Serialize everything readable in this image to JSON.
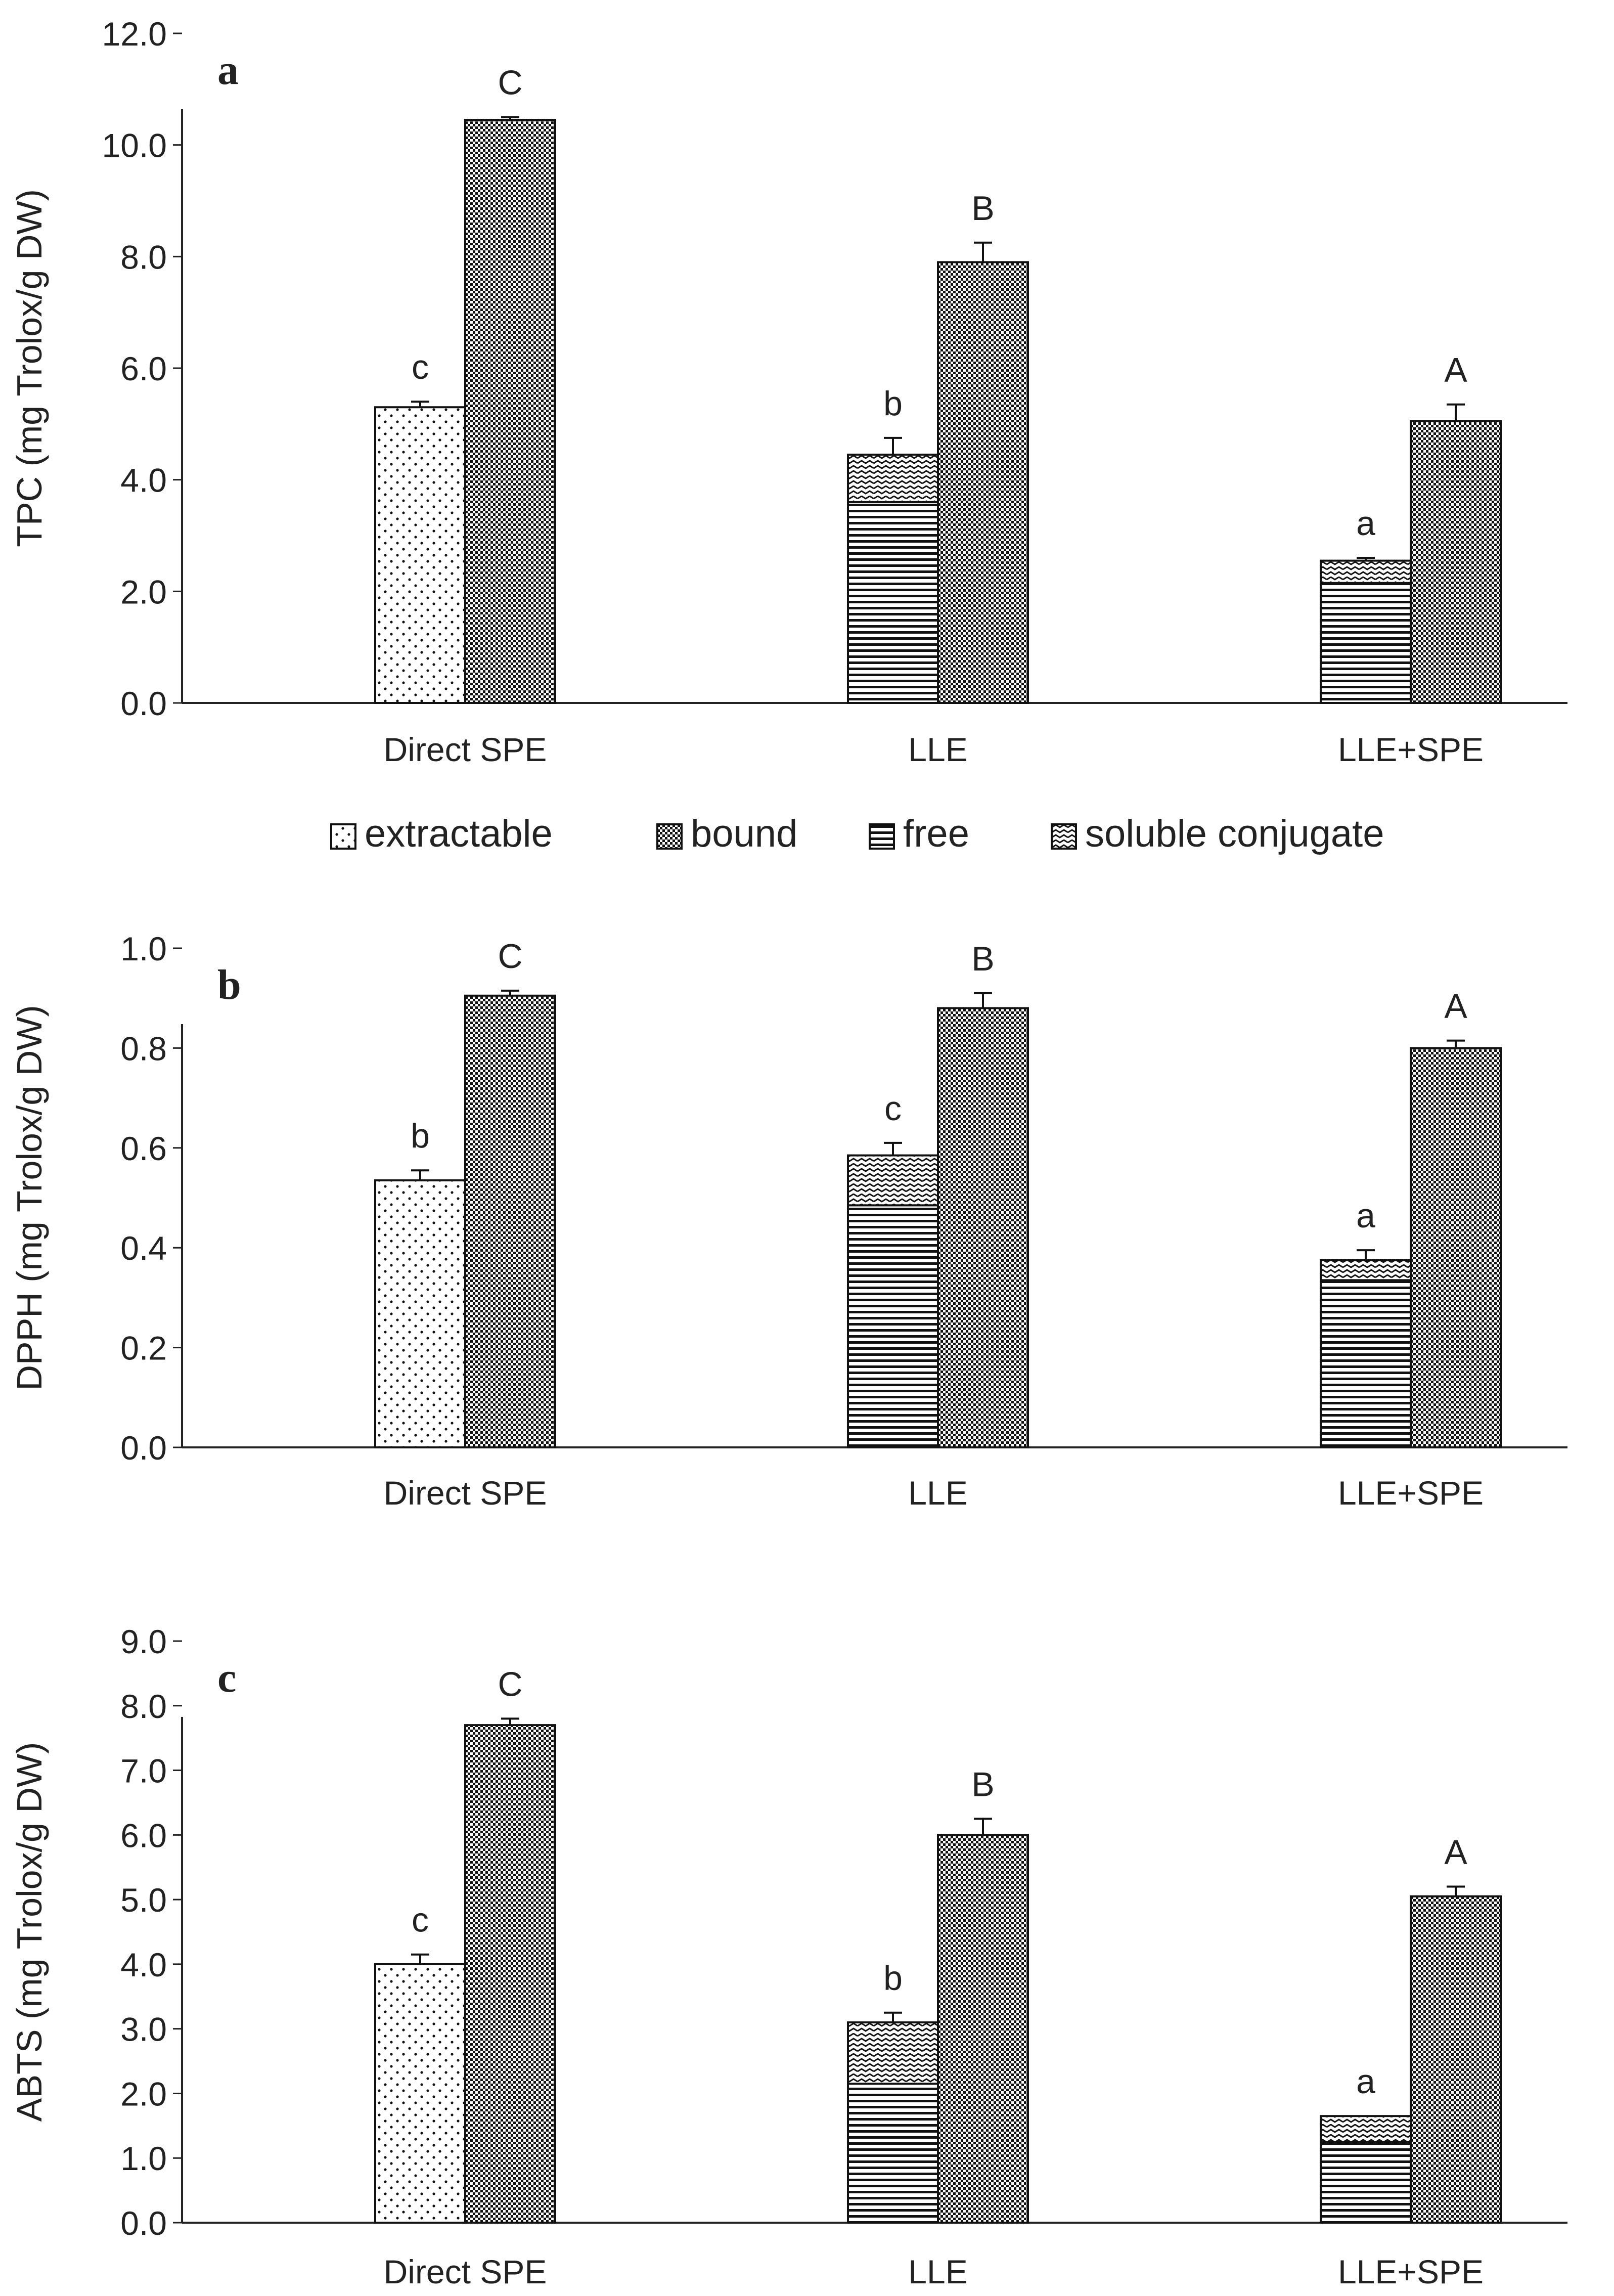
{
  "legend": {
    "items": [
      {
        "key": "extractable",
        "label": "extractable",
        "pattern": "dots-sparse"
      },
      {
        "key": "bound",
        "label": "bound",
        "pattern": "dots-dense"
      },
      {
        "key": "free",
        "label": "free",
        "pattern": "hlines"
      },
      {
        "key": "soluble_conjugate",
        "label": "soluble conjugate",
        "pattern": "waves"
      }
    ]
  },
  "colors": {
    "bar_fill": "#ffffff",
    "ink": "#111111",
    "axis": "#222222"
  },
  "chart_data": [
    {
      "type": "bar",
      "stacked": true,
      "panel_letter": "a",
      "ylabel": "TPC (mg Trolox/g DW)",
      "ylim": [
        0,
        12
      ],
      "yticks": [
        "0.0",
        "2.0",
        "4.0",
        "6.0",
        "8.0",
        "10.0",
        "12.0"
      ],
      "categories": [
        "Direct SPE",
        "LLE",
        "LLE+SPE"
      ],
      "bars": [
        {
          "category": "Direct SPE",
          "position": "left",
          "segments": [
            {
              "series": "extractable",
              "value": 5.3
            }
          ],
          "error": 0.1,
          "letter": "c"
        },
        {
          "category": "Direct SPE",
          "position": "right",
          "segments": [
            {
              "series": "bound",
              "value": 10.45
            }
          ],
          "error": 0.05,
          "letter": "C"
        },
        {
          "category": "LLE",
          "position": "left",
          "segments": [
            {
              "series": "free",
              "value": 3.6
            },
            {
              "series": "soluble_conjugate",
              "value": 0.85
            }
          ],
          "error": 0.3,
          "letter": "b"
        },
        {
          "category": "LLE",
          "position": "right",
          "segments": [
            {
              "series": "bound",
              "value": 7.9
            }
          ],
          "error": 0.35,
          "letter": "B"
        },
        {
          "category": "LLE+SPE",
          "position": "left",
          "segments": [
            {
              "series": "free",
              "value": 2.15
            },
            {
              "series": "soluble_conjugate",
              "value": 0.4
            }
          ],
          "error": 0.05,
          "letter": "a"
        },
        {
          "category": "LLE+SPE",
          "position": "right",
          "segments": [
            {
              "series": "bound",
              "value": 5.05
            }
          ],
          "error": 0.3,
          "letter": "A"
        }
      ]
    },
    {
      "type": "bar",
      "stacked": true,
      "panel_letter": "b",
      "ylabel": "DPPH (mg Trolox/g DW)",
      "ylim": [
        0,
        1
      ],
      "yticks": [
        "0.0",
        "0.2",
        "0.4",
        "0.6",
        "0.8",
        "1.0"
      ],
      "categories": [
        "Direct SPE",
        "LLE",
        "LLE+SPE"
      ],
      "bars": [
        {
          "category": "Direct SPE",
          "position": "left",
          "segments": [
            {
              "series": "extractable",
              "value": 0.535
            }
          ],
          "error": 0.02,
          "letter": "b"
        },
        {
          "category": "Direct SPE",
          "position": "right",
          "segments": [
            {
              "series": "bound",
              "value": 0.905
            }
          ],
          "error": 0.01,
          "letter": "C"
        },
        {
          "category": "LLE",
          "position": "left",
          "segments": [
            {
              "series": "free",
              "value": 0.485
            },
            {
              "series": "soluble_conjugate",
              "value": 0.1
            }
          ],
          "error": 0.025,
          "letter": "c"
        },
        {
          "category": "LLE",
          "position": "right",
          "segments": [
            {
              "series": "bound",
              "value": 0.88
            }
          ],
          "error": 0.03,
          "letter": "B"
        },
        {
          "category": "LLE+SPE",
          "position": "left",
          "segments": [
            {
              "series": "free",
              "value": 0.335
            },
            {
              "series": "soluble_conjugate",
              "value": 0.04
            }
          ],
          "error": 0.02,
          "letter": "a"
        },
        {
          "category": "LLE+SPE",
          "position": "right",
          "segments": [
            {
              "series": "bound",
              "value": 0.8
            }
          ],
          "error": 0.015,
          "letter": "A"
        }
      ]
    },
    {
      "type": "bar",
      "stacked": true,
      "panel_letter": "c",
      "ylabel": "ABTS  (mg Trolox/g DW)",
      "ylim": [
        0,
        9
      ],
      "yticks": [
        "0.0",
        "1.0",
        "2.0",
        "3.0",
        "4.0",
        "5.0",
        "6.0",
        "7.0",
        "8.0",
        "9.0"
      ],
      "categories": [
        "Direct SPE",
        "LLE",
        "LLE+SPE"
      ],
      "bars": [
        {
          "category": "Direct SPE",
          "position": "left",
          "segments": [
            {
              "series": "extractable",
              "value": 4.0
            }
          ],
          "error": 0.15,
          "letter": "c"
        },
        {
          "category": "Direct SPE",
          "position": "right",
          "segments": [
            {
              "series": "bound",
              "value": 7.7
            }
          ],
          "error": 0.1,
          "letter": "C"
        },
        {
          "category": "LLE",
          "position": "left",
          "segments": [
            {
              "series": "free",
              "value": 2.15
            },
            {
              "series": "soluble_conjugate",
              "value": 0.95
            }
          ],
          "error": 0.15,
          "letter": "b"
        },
        {
          "category": "LLE",
          "position": "right",
          "segments": [
            {
              "series": "bound",
              "value": 6.0
            }
          ],
          "error": 0.25,
          "letter": "B"
        },
        {
          "category": "LLE+SPE",
          "position": "left",
          "segments": [
            {
              "series": "free",
              "value": 1.25
            },
            {
              "series": "soluble_conjugate",
              "value": 0.4
            }
          ],
          "error": 0.0,
          "letter": "a"
        },
        {
          "category": "LLE+SPE",
          "position": "right",
          "segments": [
            {
              "series": "bound",
              "value": 5.05
            }
          ],
          "error": 0.15,
          "letter": "A"
        }
      ]
    }
  ]
}
